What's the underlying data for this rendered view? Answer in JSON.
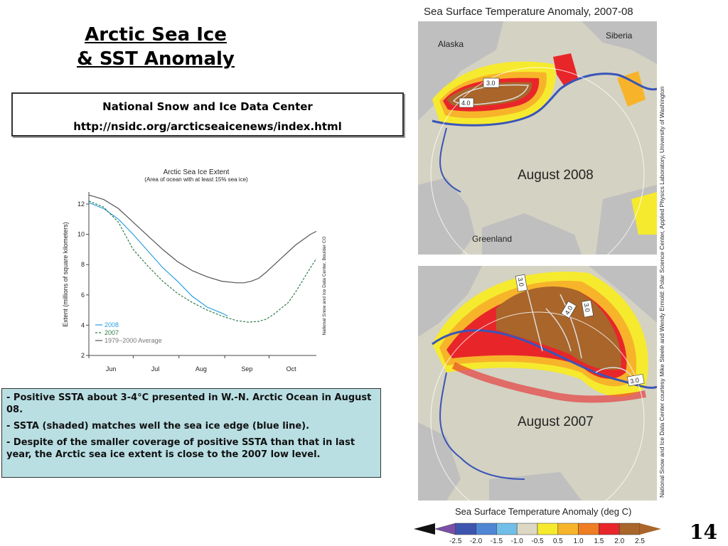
{
  "slide": {
    "title_line1": "Arctic Sea Ice",
    "title_line2": "& SST Anomaly",
    "source_name": "National Snow and Ice Data Center",
    "source_url": "http://nsidc.org/arcticseaicenews/index.html",
    "page_number": "14"
  },
  "notes": [
    "- Positive SSTA about 3-4°C presented in W.-N. Arctic Ocean in August 08.",
    "- SSTA (shaded) matches well the sea ice edge (blue line).",
    "- Despite of the smaller coverage of positive SSTA than that in last year, the Arctic sea ice extent is close to the 2007 low level."
  ],
  "sst_figure": {
    "title": "Sea Surface Temperature Anomaly, 2007-08",
    "map_top": {
      "label": "August 2008",
      "region_labels": [
        "Alaska",
        "Siberia",
        "Greenland"
      ],
      "contour_labels": [
        "3.0",
        "4.0"
      ]
    },
    "map_bottom": {
      "label": "August 2007",
      "contour_labels": [
        "3.0",
        "4.0",
        "3.0",
        "3.0"
      ]
    },
    "credit": "National Snow and Ice Data Center courtesy Mike Steele and Wendy Ermold: Polar Science Center, Applied Physics Laboratory, University of Washington",
    "colorbar_title": "Sea Surface Temperature Anomaly (deg C)",
    "colorbar_ticks": [
      "-2.5",
      "-2.0",
      "-1.5",
      "-1.0",
      "-0.5",
      "0.5",
      "1.0",
      "1.5",
      "2.0",
      "2.5"
    ],
    "colorbar_colors": [
      "#7b4fa8",
      "#3e55b0",
      "#4f86d4",
      "#6fbfe8",
      "#dcd8c4",
      "#f6ea2e",
      "#f7b42a",
      "#ef7d23",
      "#e8262a",
      "#a9652a"
    ],
    "colors": {
      "land": "#bfbfbf",
      "ice": "#d4d2c2",
      "sea_ice_edge": "#3a55b8",
      "strong_anomaly": "#a9652a"
    }
  },
  "chart_data": {
    "type": "line",
    "title": "Arctic Sea Ice Extent",
    "subtitle": "(Area of ocean with at least 15% sea ice)",
    "ylabel": "Extent (millions of square kilometers)",
    "xlabel": "",
    "source_note": "National Snow and Ice Data Center, Boulder CO",
    "categories": [
      "Jun",
      "Jul",
      "Aug",
      "Sep",
      "Oct"
    ],
    "yticks": [
      2,
      4,
      6,
      8,
      10,
      12
    ],
    "ylim": [
      2,
      12.8
    ],
    "xlim": [
      0,
      154
    ],
    "legend_position": "bottom-left",
    "series": [
      {
        "name": "2008",
        "color": "#2a9fe0",
        "dash": false,
        "x": [
          0,
          10,
          20,
          30,
          40,
          50,
          60,
          70,
          80,
          90,
          94
        ],
        "y": [
          12.1,
          11.7,
          11.0,
          10.0,
          8.9,
          7.8,
          6.9,
          5.9,
          5.2,
          4.8,
          4.6
        ]
      },
      {
        "name": "2007",
        "color": "#2e7d4a",
        "dash": true,
        "x": [
          0,
          10,
          20,
          30,
          40,
          50,
          60,
          70,
          80,
          90,
          100,
          108,
          115,
          120,
          125,
          130,
          135,
          140,
          145,
          150,
          154
        ],
        "y": [
          12.2,
          11.8,
          10.8,
          9.0,
          7.9,
          6.9,
          6.1,
          5.5,
          5.0,
          4.6,
          4.3,
          4.2,
          4.25,
          4.4,
          4.7,
          5.1,
          5.5,
          6.2,
          7.0,
          7.8,
          8.4
        ]
      },
      {
        "name": "1979−2000 Average",
        "color": "#555555",
        "dash": false,
        "x": [
          0,
          10,
          20,
          30,
          40,
          50,
          60,
          70,
          80,
          90,
          100,
          105,
          110,
          115,
          120,
          130,
          140,
          150,
          154
        ],
        "y": [
          12.6,
          12.3,
          11.7,
          10.8,
          9.9,
          9.0,
          8.2,
          7.6,
          7.2,
          6.9,
          6.8,
          6.8,
          6.9,
          7.1,
          7.5,
          8.4,
          9.3,
          10.0,
          10.2
        ]
      }
    ]
  }
}
